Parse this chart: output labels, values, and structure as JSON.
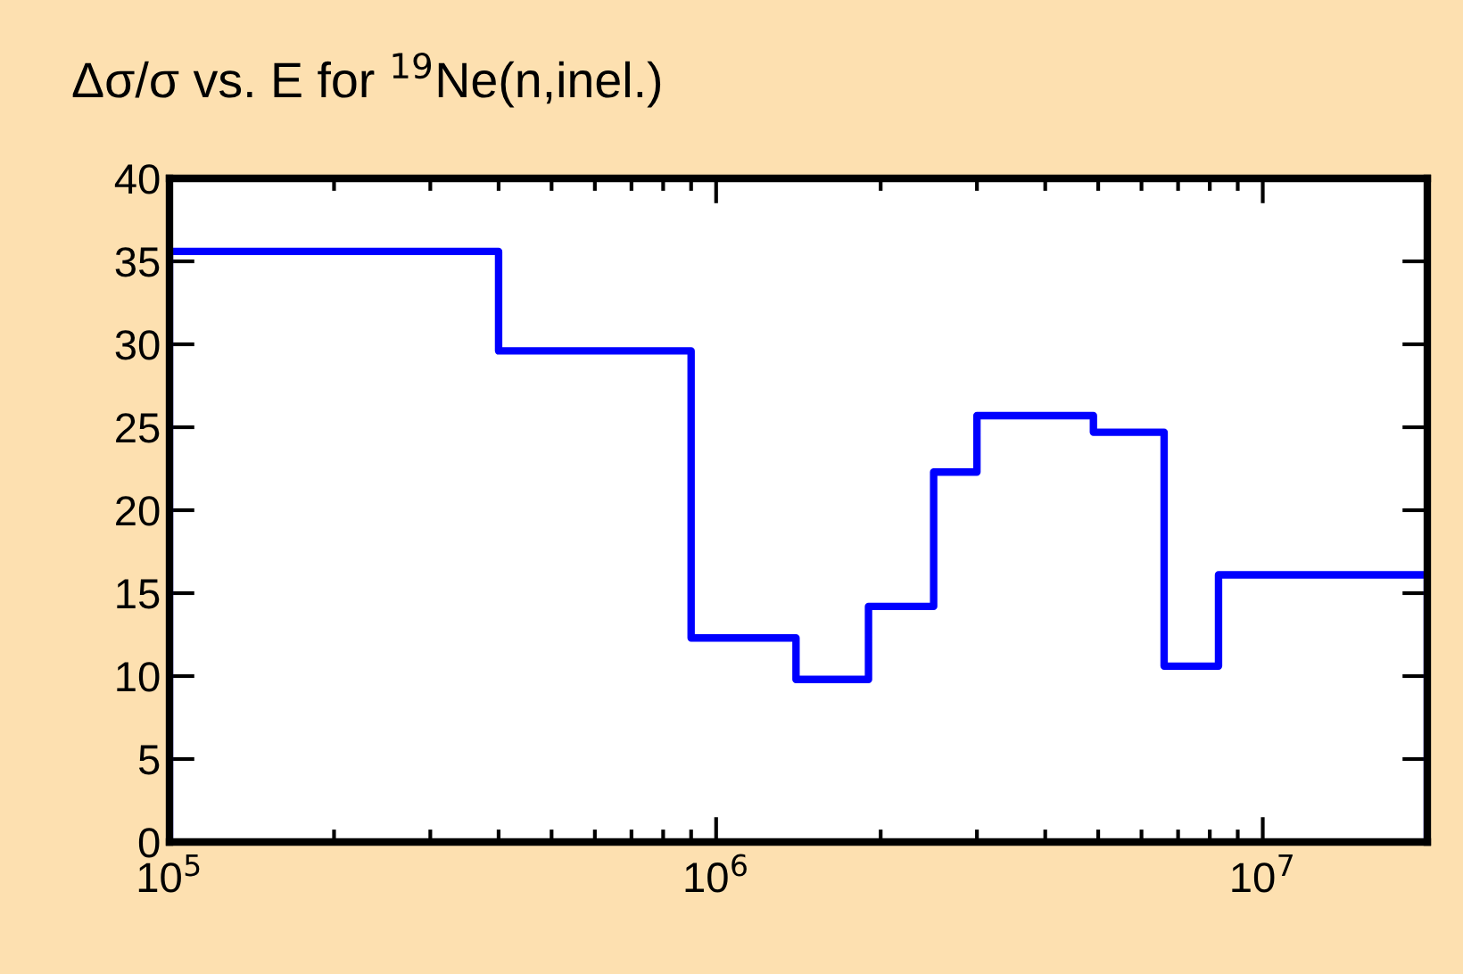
{
  "chart_data": {
    "type": "step",
    "title": "Δσ/σ vs. E for $^{19}$Ne(n,inel.)",
    "x": [
      100000,
      100000,
      400000,
      900000,
      1400000,
      1900000,
      2500000,
      3000000,
      4900000,
      6600000,
      8300000,
      20000000,
      20000000
    ],
    "series": [
      {
        "color": "#0000ff",
        "values": [
          0,
          35.6,
          29.6,
          12.3,
          9.8,
          14.2,
          22.3,
          25.7,
          24.7,
          10.6,
          16.1,
          16.1,
          0
        ]
      }
    ],
    "log": "x",
    "xlim": [
      100000,
      20000000
    ],
    "xticks": [
      {
        "value": 100000,
        "label": "10$^{5}$"
      },
      {
        "value": 1000000,
        "label": "10$^{6}$"
      },
      {
        "value": 10000000,
        "label": "10$^{7}$"
      }
    ],
    "ylim": [
      0,
      40
    ],
    "yticks": [
      0,
      5,
      10,
      15,
      20,
      25,
      30,
      35,
      40
    ],
    "grid": false,
    "legend": false
  }
}
